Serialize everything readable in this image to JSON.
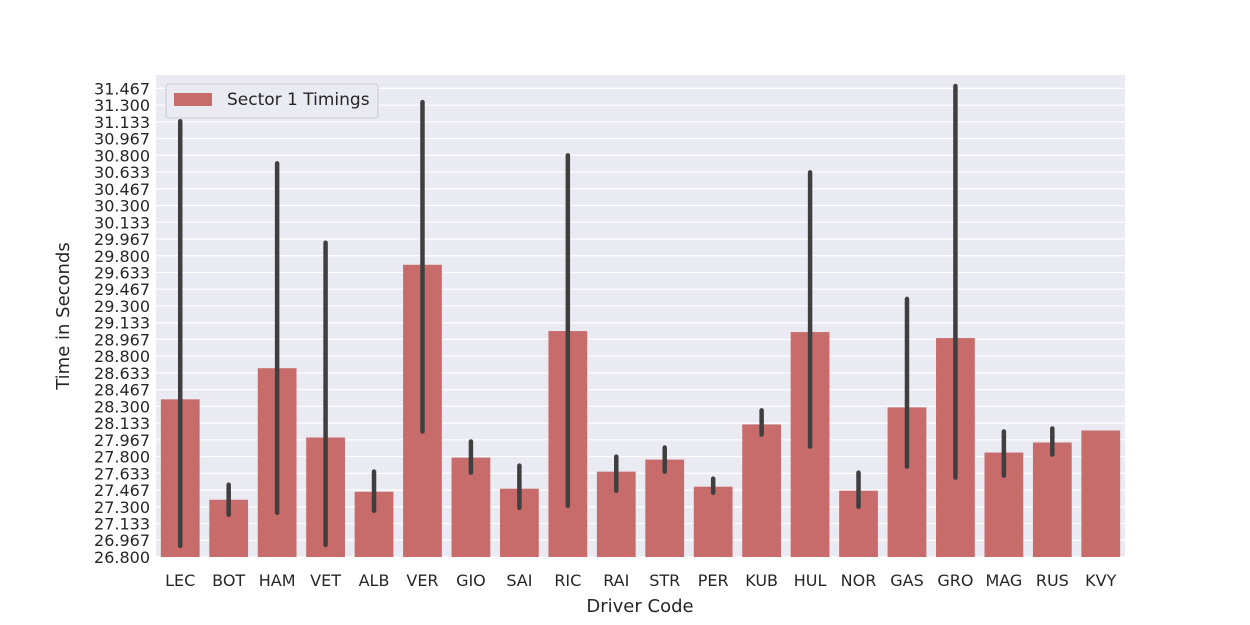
{
  "chart_data": {
    "type": "bar",
    "title": "",
    "xlabel": "Driver Code",
    "ylabel": "Time in Seconds",
    "ylim": [
      26.8,
      31.6
    ],
    "grid": true,
    "legend": {
      "placement": "top-left",
      "entries": [
        "Sector 1 Timings"
      ]
    },
    "bar_color": "#c76b6b",
    "error_color": "#3f3f3f",
    "background_color": "#eaeaf2",
    "yticks": [
      "26.800",
      "26.967",
      "27.133",
      "27.300",
      "27.467",
      "27.633",
      "27.800",
      "27.967",
      "28.133",
      "28.300",
      "28.467",
      "28.633",
      "28.800",
      "28.967",
      "29.133",
      "29.300",
      "29.467",
      "29.633",
      "29.800",
      "29.967",
      "30.133",
      "30.300",
      "30.467",
      "30.633",
      "30.800",
      "30.967",
      "31.133",
      "31.300",
      "31.467"
    ],
    "categories": [
      "LEC",
      "BOT",
      "HAM",
      "VET",
      "ALB",
      "VER",
      "GIO",
      "SAI",
      "RIC",
      "RAI",
      "STR",
      "PER",
      "KUB",
      "HUL",
      "NOR",
      "GAS",
      "GRO",
      "MAG",
      "RUS",
      "KVY"
    ],
    "series": [
      {
        "name": "Sector 1 Timings",
        "values": [
          28.37,
          27.37,
          28.68,
          27.99,
          27.45,
          29.71,
          27.79,
          27.48,
          29.05,
          27.65,
          27.77,
          27.5,
          28.12,
          29.04,
          27.46,
          28.29,
          28.98,
          27.84,
          27.94,
          28.06
        ],
        "ci_low": [
          26.91,
          27.22,
          27.24,
          26.92,
          27.26,
          28.05,
          27.64,
          27.29,
          27.31,
          27.46,
          27.65,
          27.44,
          28.02,
          27.9,
          27.3,
          27.7,
          27.59,
          27.61,
          27.82,
          null
        ],
        "ci_high": [
          31.14,
          27.52,
          30.72,
          29.93,
          27.65,
          31.33,
          27.95,
          27.71,
          30.8,
          27.8,
          27.89,
          27.58,
          28.26,
          30.63,
          27.64,
          29.37,
          31.49,
          28.05,
          28.08,
          null
        ]
      }
    ]
  }
}
